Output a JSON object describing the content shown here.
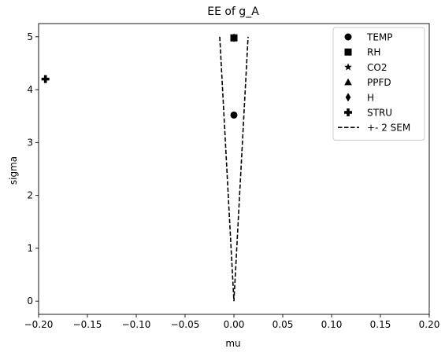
{
  "chart_data": {
    "type": "scatter",
    "title": "EE of g_A",
    "xlabel": "mu",
    "ylabel": "sigma",
    "xlim": [
      -0.2,
      0.2
    ],
    "ylim": [
      -0.25,
      5.25
    ],
    "xticks": [
      -0.2,
      -0.15,
      -0.1,
      -0.05,
      0.0,
      0.05,
      0.1,
      0.15,
      0.2
    ],
    "xtick_labels": [
      "−0.20",
      "−0.15",
      "−0.10",
      "−0.05",
      "0.00",
      "0.05",
      "0.10",
      "0.15",
      "0.20"
    ],
    "yticks": [
      0,
      1,
      2,
      3,
      4,
      5
    ],
    "ytick_labels": [
      "0",
      "1",
      "2",
      "3",
      "4",
      "5"
    ],
    "grid": false,
    "legend_position": "top-right",
    "color": "#000000",
    "series": [
      {
        "name": "TEMP",
        "marker": "circle",
        "points": [
          {
            "x": 0.0,
            "y": 3.52
          }
        ]
      },
      {
        "name": "RH",
        "marker": "square",
        "points": [
          {
            "x": 0.0,
            "y": 4.98
          }
        ]
      },
      {
        "name": "CO2",
        "marker": "star",
        "points": [
          {
            "x": 0.0,
            "y": 4.97
          }
        ]
      },
      {
        "name": "PPFD",
        "marker": "triangle",
        "points": [
          {
            "x": 0.0,
            "y": 4.99
          }
        ]
      },
      {
        "name": "H",
        "marker": "diamond",
        "points": [
          {
            "x": 0.0,
            "y": 4.98
          }
        ]
      },
      {
        "name": "STRU",
        "marker": "plus",
        "points": [
          {
            "x": -0.193,
            "y": 4.2
          }
        ]
      }
    ],
    "lines": [
      {
        "name": "+- 2 SEM",
        "style": "dashed",
        "points": [
          {
            "x": -0.0145,
            "y": 5.0
          },
          {
            "x": 0.0,
            "y": 0.0
          },
          {
            "x": 0.0145,
            "y": 5.0
          }
        ]
      }
    ]
  }
}
